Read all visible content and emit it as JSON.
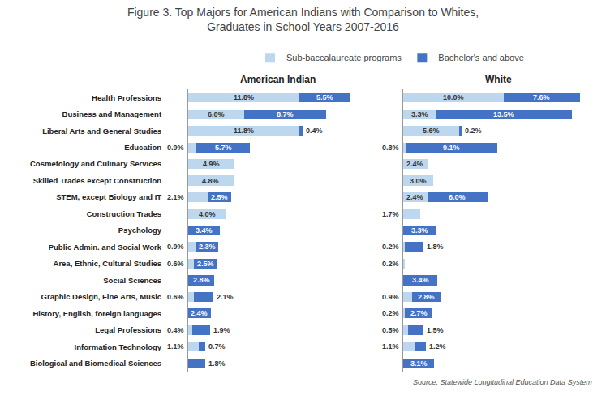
{
  "title": "Figure 3. Top Majors for American Indians with Comparison to Whites,\nGraduates in School Years 2007-2016",
  "annotations": [
    "Source: Statewide Longitudinal Education Data System"
  ],
  "chart_data": [
    {
      "type": "bar",
      "title": "American Indian",
      "orientation": "horizontal",
      "stacked": true,
      "data_labels": true,
      "tick_labels": "y",
      "grid": false,
      "legend": "top",
      "categories": [
        "Health Professions",
        "Business and Management",
        "Liberal Arts and General Studies",
        "Education",
        "Cosmetology and Culinary Services",
        "Skilled Trades except Construction",
        "STEM, except Biology and IT",
        "Construction Trades",
        "Psychology",
        "Public Admin. and Social Work",
        "Area, Ethnic, Cultural Studies",
        "Social Sciences",
        "Graphic Design, Fine Arts, Music",
        "History, English, foreign languages",
        "Legal Professions",
        "Information Technology",
        "Biological and Biomedical Sciences"
      ],
      "xlim": [
        0,
        19
      ],
      "series": [
        {
          "name": "Sub-baccalaureate programs",
          "color": "#bdd7ee",
          "values": [
            11.8,
            6.0,
            11.8,
            0.9,
            4.9,
            4.8,
            2.1,
            4.0,
            0.0,
            0.9,
            0.6,
            0.0,
            0.6,
            0.0,
            0.4,
            1.1,
            0.0
          ],
          "value_labels": [
            "11.8%",
            "6.0%",
            "11.8%",
            "0.9%",
            "4.9%",
            "4.8%",
            "2.1%",
            "4.0%",
            null,
            "0.9%",
            "0.6%",
            null,
            "0.6%",
            null,
            "0.4%",
            "1.1%",
            null
          ]
        },
        {
          "name": "Bachelor's and above",
          "color": "#4472c4",
          "values": [
            5.5,
            8.7,
            0.4,
            5.7,
            0.0,
            0.0,
            2.5,
            0.0,
            3.4,
            2.3,
            2.5,
            2.8,
            2.1,
            2.4,
            1.9,
            0.7,
            1.8
          ],
          "value_labels": [
            "5.5%",
            "8.7%",
            "0.4%",
            "5.7%",
            null,
            null,
            "2.5%",
            null,
            "3.4%",
            "2.3%",
            "2.5%",
            "2.8%",
            "2.1%",
            "2.4%",
            "1.9%",
            "0.7%",
            "1.8%"
          ]
        }
      ]
    },
    {
      "type": "bar",
      "title": "White",
      "orientation": "horizontal",
      "stacked": true,
      "data_labels": true,
      "tick_labels": false,
      "grid": false,
      "categories": [
        "Health Professions",
        "Business and Management",
        "Liberal Arts and General Studies",
        "Education",
        "Cosmetology and Culinary Services",
        "Skilled Trades except Construction",
        "STEM, except Biology and IT",
        "Construction Trades",
        "Psychology",
        "Public Admin. and Social Work",
        "Area, Ethnic, Cultural Studies",
        "Social Sciences",
        "Graphic Design, Fine Arts, Music",
        "History, English, foreign languages",
        "Legal Professions",
        "Information Technology",
        "Biological and Biomedical Sciences"
      ],
      "xlim": [
        0,
        19
      ],
      "series": [
        {
          "name": "Sub-baccalaureate programs",
          "color": "#bdd7ee",
          "values": [
            10.0,
            3.3,
            5.6,
            0.3,
            2.4,
            3.0,
            2.4,
            1.7,
            0.0,
            0.2,
            0.2,
            0.0,
            0.9,
            0.2,
            0.5,
            1.1,
            0.0
          ],
          "value_labels": [
            "10.0%",
            "3.3%",
            "5.6%",
            "0.3%",
            "2.4%",
            "3.0%",
            "2.4%",
            "1.7%",
            null,
            "0.2%",
            "0.2%",
            null,
            "0.9%",
            "0.2%",
            "0.5%",
            "1.1%",
            null
          ]
        },
        {
          "name": "Bachelor's and above",
          "color": "#4472c4",
          "values": [
            7.6,
            13.5,
            0.2,
            9.1,
            0.0,
            0.0,
            6.0,
            0.0,
            3.3,
            1.8,
            0.0,
            3.4,
            2.8,
            2.7,
            1.5,
            1.2,
            3.1
          ],
          "value_labels": [
            "7.6%",
            "13.5%",
            "0.2%",
            "9.1%",
            null,
            null,
            "6.0%",
            null,
            "3.3%",
            "1.8%",
            null,
            "3.4%",
            "2.8%",
            "2.7%",
            "1.5%",
            "1.2%",
            "3.1%"
          ]
        }
      ]
    }
  ]
}
